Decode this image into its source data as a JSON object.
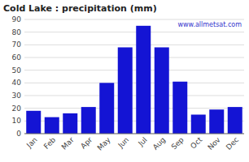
{
  "chart_data": {
    "type": "bar",
    "title": "Cold Lake : precipitation (mm)",
    "categories": [
      "Jan",
      "Feb",
      "Mar",
      "Apr",
      "May",
      "Jun",
      "Jul",
      "Aug",
      "Sep",
      "Oct",
      "Nov",
      "Dec"
    ],
    "values": [
      18,
      13,
      16,
      21,
      40,
      68,
      85,
      68,
      41,
      15,
      19,
      21
    ],
    "color": "#1414d4",
    "ylim": [
      0,
      90
    ],
    "yticks": [
      0,
      10,
      20,
      30,
      40,
      50,
      60,
      70,
      80,
      90
    ],
    "grid": true,
    "annotations": [
      "www.allmetsat.com"
    ]
  }
}
